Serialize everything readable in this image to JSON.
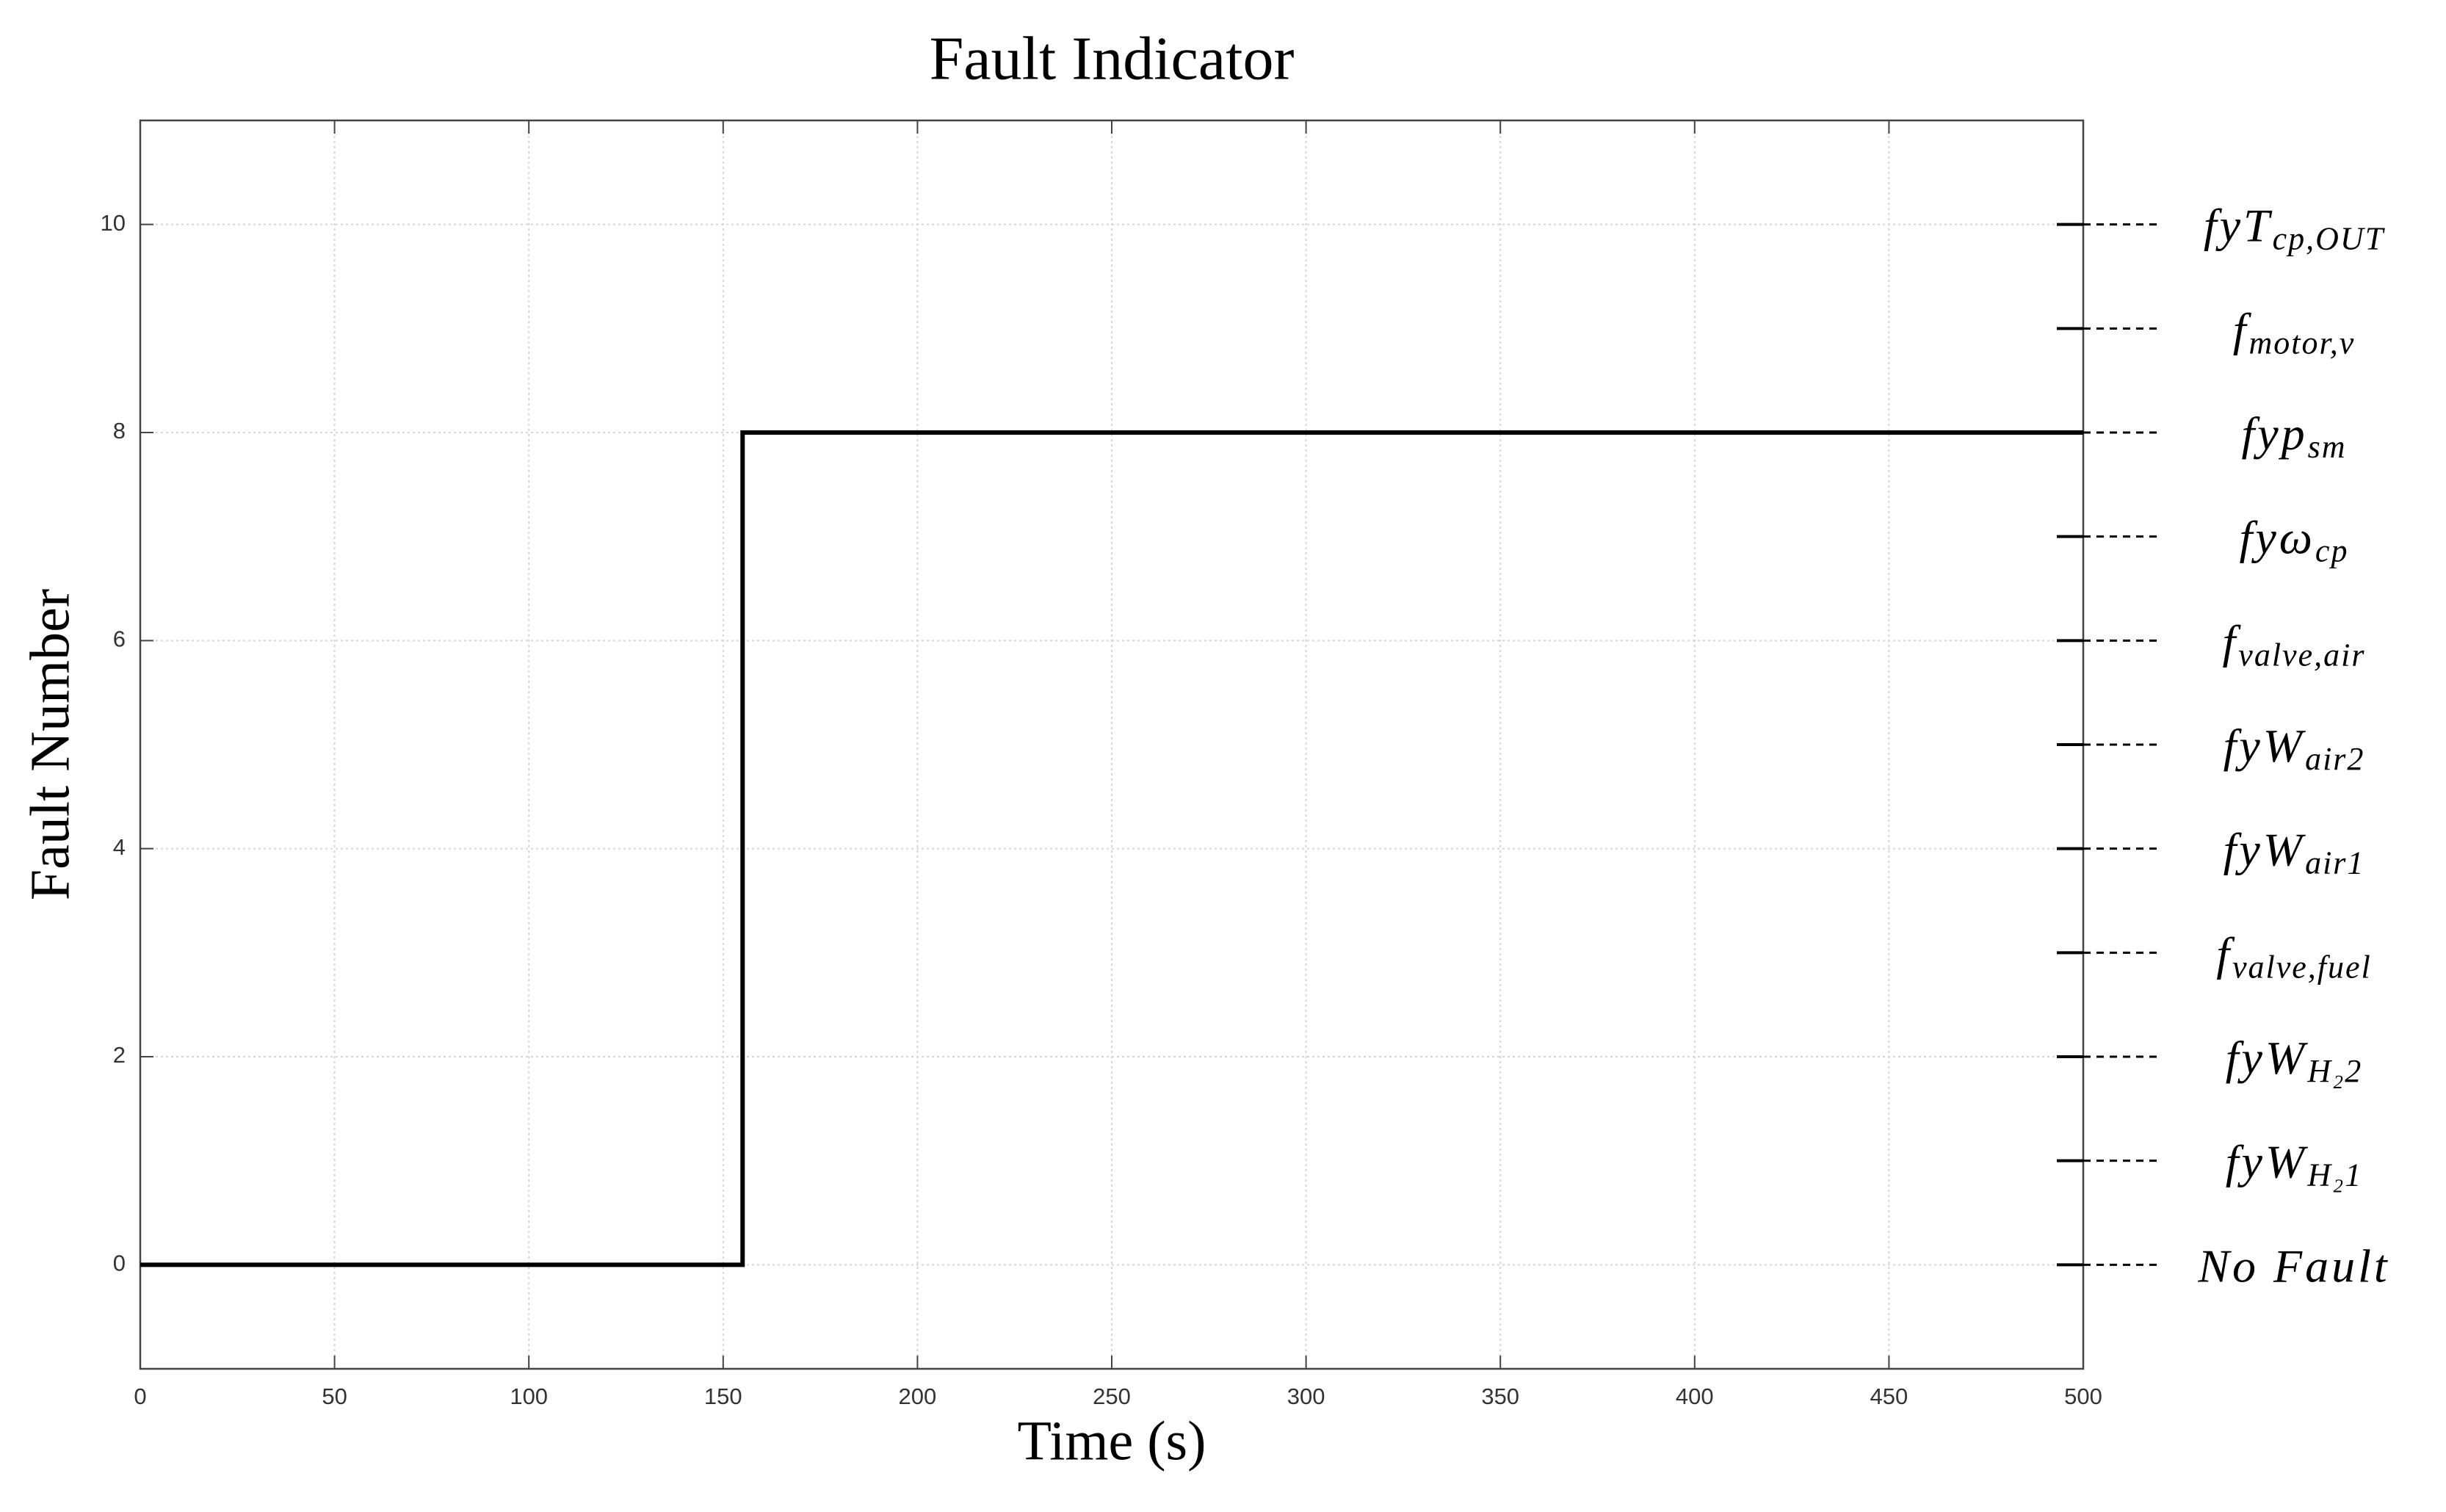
{
  "chart_data": {
    "type": "line",
    "title": "Fault Indicator",
    "x_label": "Time (s)",
    "y_label": "Fault Number",
    "xlim": [
      0,
      500
    ],
    "ylim": [
      -1,
      11
    ],
    "xticks": [
      0,
      50,
      100,
      150,
      200,
      250,
      300,
      350,
      400,
      450,
      500
    ],
    "yticks": [
      0,
      2,
      4,
      6,
      8,
      10
    ],
    "grid": true,
    "series": [
      {
        "color": "#000000",
        "x": [
          0,
          155,
          155,
          500
        ],
        "values": [
          0,
          0,
          8,
          8
        ]
      }
    ],
    "fault_labels": [
      {
        "value": 0,
        "text": "No Fault"
      },
      {
        "value": 1,
        "text": "fyW",
        "sub": "H₂1"
      },
      {
        "value": 2,
        "text": "fyW",
        "sub": "H₂2"
      },
      {
        "value": 3,
        "text": "f",
        "sub": "valve,fuel"
      },
      {
        "value": 4,
        "text": "fyW",
        "sub": "air1"
      },
      {
        "value": 5,
        "text": "fyW",
        "sub": "air2"
      },
      {
        "value": 6,
        "text": "f",
        "sub": "valve,air"
      },
      {
        "value": 7,
        "text": "fyω",
        "sub": "cp"
      },
      {
        "value": 8,
        "text": "fyp",
        "sub": "sm"
      },
      {
        "value": 9,
        "text": "f",
        "sub": "motor,v"
      },
      {
        "value": 10,
        "text": "fyT",
        "sub": "cp,OUT"
      }
    ]
  }
}
